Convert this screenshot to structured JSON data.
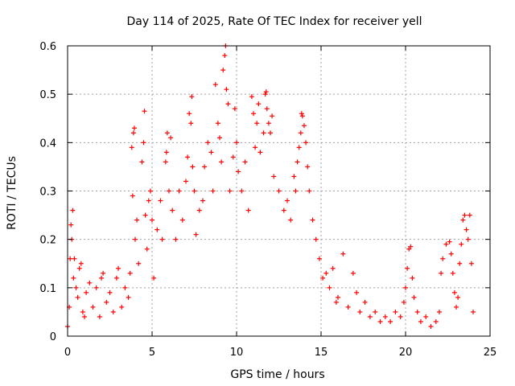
{
  "chart_data": {
    "type": "scatter",
    "title": "Day 114 of 2025, Rate Of TEC Index for receiver yell",
    "xlabel": "GPS time / hours",
    "ylabel": "ROTI / TECUs",
    "xlim": [
      0,
      25
    ],
    "ylim": [
      0,
      0.6
    ],
    "xticks": [
      0,
      5,
      10,
      15,
      20,
      25
    ],
    "yticks": [
      0,
      0.1,
      0.2,
      0.3,
      0.4,
      0.5,
      0.6
    ],
    "xtick_labels": [
      "0",
      "5",
      "10",
      "15",
      "20",
      "25"
    ],
    "ytick_labels": [
      "0",
      "0.1",
      "0.2",
      "0.3",
      "0.4",
      "0.5",
      "0.6"
    ],
    "grid": true,
    "marker": "+",
    "marker_color": "#ff0000",
    "series": [
      {
        "name": "ROTI",
        "points": [
          [
            0.0,
            0.02
          ],
          [
            0.1,
            0.06
          ],
          [
            0.15,
            0.16
          ],
          [
            0.2,
            0.23
          ],
          [
            0.25,
            0.2
          ],
          [
            0.3,
            0.26
          ],
          [
            0.35,
            0.12
          ],
          [
            0.4,
            0.16
          ],
          [
            0.5,
            0.1
          ],
          [
            0.6,
            0.08
          ],
          [
            0.7,
            0.14
          ],
          [
            0.8,
            0.15
          ],
          [
            0.9,
            0.05
          ],
          [
            1.0,
            0.04
          ],
          [
            1.1,
            0.09
          ],
          [
            1.3,
            0.11
          ],
          [
            1.5,
            0.06
          ],
          [
            1.7,
            0.1
          ],
          [
            1.9,
            0.04
          ],
          [
            2.0,
            0.12
          ],
          [
            2.1,
            0.13
          ],
          [
            2.3,
            0.07
          ],
          [
            2.5,
            0.09
          ],
          [
            2.7,
            0.05
          ],
          [
            2.9,
            0.12
          ],
          [
            3.0,
            0.14
          ],
          [
            3.2,
            0.06
          ],
          [
            3.4,
            0.1
          ],
          [
            3.6,
            0.08
          ],
          [
            3.7,
            0.13
          ],
          [
            3.8,
            0.39
          ],
          [
            3.85,
            0.29
          ],
          [
            3.9,
            0.42
          ],
          [
            3.95,
            0.43
          ],
          [
            4.0,
            0.2
          ],
          [
            4.1,
            0.24
          ],
          [
            4.2,
            0.15
          ],
          [
            4.4,
            0.36
          ],
          [
            4.5,
            0.4
          ],
          [
            4.55,
            0.465
          ],
          [
            4.6,
            0.25
          ],
          [
            4.7,
            0.18
          ],
          [
            4.8,
            0.28
          ],
          [
            4.9,
            0.3
          ],
          [
            5.0,
            0.24
          ],
          [
            5.1,
            0.12
          ],
          [
            5.3,
            0.22
          ],
          [
            5.5,
            0.28
          ],
          [
            5.6,
            0.2
          ],
          [
            5.8,
            0.36
          ],
          [
            5.85,
            0.38
          ],
          [
            5.9,
            0.42
          ],
          [
            6.0,
            0.3
          ],
          [
            6.1,
            0.41
          ],
          [
            6.2,
            0.26
          ],
          [
            6.4,
            0.2
          ],
          [
            6.6,
            0.3
          ],
          [
            6.8,
            0.24
          ],
          [
            7.0,
            0.32
          ],
          [
            7.1,
            0.37
          ],
          [
            7.2,
            0.46
          ],
          [
            7.3,
            0.44
          ],
          [
            7.35,
            0.495
          ],
          [
            7.4,
            0.35
          ],
          [
            7.5,
            0.3
          ],
          [
            7.6,
            0.21
          ],
          [
            7.8,
            0.26
          ],
          [
            8.0,
            0.28
          ],
          [
            8.1,
            0.35
          ],
          [
            8.3,
            0.4
          ],
          [
            8.5,
            0.38
          ],
          [
            8.6,
            0.3
          ],
          [
            8.75,
            0.52
          ],
          [
            8.9,
            0.44
          ],
          [
            9.0,
            0.41
          ],
          [
            9.1,
            0.36
          ],
          [
            9.2,
            0.55
          ],
          [
            9.3,
            0.58
          ],
          [
            9.35,
            0.6
          ],
          [
            9.4,
            0.51
          ],
          [
            9.5,
            0.48
          ],
          [
            9.6,
            0.3
          ],
          [
            9.8,
            0.37
          ],
          [
            9.9,
            0.47
          ],
          [
            10.0,
            0.4
          ],
          [
            10.1,
            0.34
          ],
          [
            10.3,
            0.3
          ],
          [
            10.5,
            0.36
          ],
          [
            10.7,
            0.26
          ],
          [
            10.9,
            0.495
          ],
          [
            11.0,
            0.46
          ],
          [
            11.1,
            0.39
          ],
          [
            11.2,
            0.44
          ],
          [
            11.3,
            0.48
          ],
          [
            11.4,
            0.38
          ],
          [
            11.6,
            0.42
          ],
          [
            11.7,
            0.5
          ],
          [
            11.75,
            0.505
          ],
          [
            11.8,
            0.47
          ],
          [
            11.9,
            0.44
          ],
          [
            12.0,
            0.42
          ],
          [
            12.1,
            0.455
          ],
          [
            12.2,
            0.33
          ],
          [
            12.5,
            0.3
          ],
          [
            12.8,
            0.26
          ],
          [
            13.0,
            0.28
          ],
          [
            13.2,
            0.24
          ],
          [
            13.4,
            0.33
          ],
          [
            13.5,
            0.3
          ],
          [
            13.6,
            0.36
          ],
          [
            13.7,
            0.39
          ],
          [
            13.8,
            0.42
          ],
          [
            13.85,
            0.46
          ],
          [
            13.9,
            0.455
          ],
          [
            14.0,
            0.435
          ],
          [
            14.1,
            0.4
          ],
          [
            14.2,
            0.35
          ],
          [
            14.3,
            0.3
          ],
          [
            14.5,
            0.24
          ],
          [
            14.7,
            0.2
          ],
          [
            14.9,
            0.16
          ],
          [
            15.1,
            0.12
          ],
          [
            15.3,
            0.13
          ],
          [
            15.5,
            0.1
          ],
          [
            15.7,
            0.14
          ],
          [
            15.9,
            0.07
          ],
          [
            16.0,
            0.08
          ],
          [
            16.3,
            0.17
          ],
          [
            16.6,
            0.06
          ],
          [
            16.9,
            0.13
          ],
          [
            17.1,
            0.09
          ],
          [
            17.3,
            0.05
          ],
          [
            17.6,
            0.07
          ],
          [
            17.9,
            0.04
          ],
          [
            18.2,
            0.05
          ],
          [
            18.5,
            0.03
          ],
          [
            18.8,
            0.04
          ],
          [
            19.1,
            0.03
          ],
          [
            19.4,
            0.05
          ],
          [
            19.7,
            0.04
          ],
          [
            19.9,
            0.07
          ],
          [
            20.0,
            0.1
          ],
          [
            20.1,
            0.14
          ],
          [
            20.2,
            0.18
          ],
          [
            20.3,
            0.185
          ],
          [
            20.4,
            0.12
          ],
          [
            20.5,
            0.08
          ],
          [
            20.7,
            0.05
          ],
          [
            20.9,
            0.03
          ],
          [
            21.2,
            0.04
          ],
          [
            21.5,
            0.02
          ],
          [
            21.8,
            0.03
          ],
          [
            22.0,
            0.05
          ],
          [
            22.1,
            0.13
          ],
          [
            22.2,
            0.16
          ],
          [
            22.4,
            0.19
          ],
          [
            22.6,
            0.195
          ],
          [
            22.7,
            0.17
          ],
          [
            22.8,
            0.13
          ],
          [
            22.9,
            0.09
          ],
          [
            23.0,
            0.06
          ],
          [
            23.1,
            0.08
          ],
          [
            23.2,
            0.15
          ],
          [
            23.3,
            0.19
          ],
          [
            23.4,
            0.24
          ],
          [
            23.5,
            0.25
          ],
          [
            23.6,
            0.22
          ],
          [
            23.7,
            0.2
          ],
          [
            23.8,
            0.25
          ],
          [
            23.9,
            0.15
          ],
          [
            24.0,
            0.05
          ]
        ]
      }
    ]
  }
}
